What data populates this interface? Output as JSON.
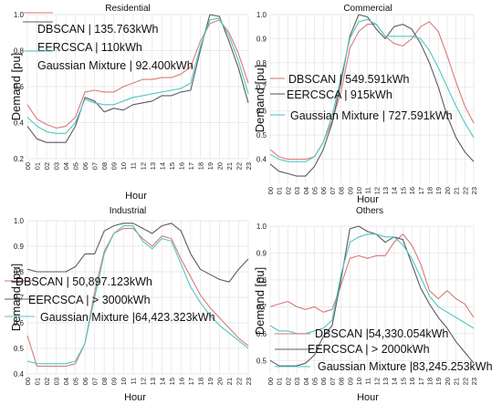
{
  "chart_data": [
    {
      "type": "line",
      "title": "Residential",
      "xlabel": "Hour",
      "ylabel": "Demand  [pu]",
      "ylim": [
        0.2,
        1.0
      ],
      "yticks": [
        "0.2",
        "0.4",
        "0.6",
        "0.8",
        "1.0"
      ],
      "x": [
        "00",
        "01",
        "02",
        "03",
        "04",
        "05",
        "06",
        "07",
        "08",
        "09",
        "10",
        "11",
        "12",
        "13",
        "14",
        "15",
        "16",
        "17",
        "18",
        "19",
        "20",
        "21",
        "22",
        "23"
      ],
      "legend_position": "top-left",
      "series": [
        {
          "name": "DBSCAN | 135.763kWh",
          "color": "#d97a7a",
          "values": [
            0.5,
            0.42,
            0.39,
            0.37,
            0.38,
            0.43,
            0.57,
            0.58,
            0.57,
            0.57,
            0.6,
            0.62,
            0.64,
            0.64,
            0.65,
            0.65,
            0.67,
            0.71,
            0.85,
            0.95,
            0.97,
            0.9,
            0.78,
            0.62
          ]
        },
        {
          "name": "EERCSCA | 110kWh",
          "color": "#5c5c5c",
          "values": [
            0.38,
            0.31,
            0.29,
            0.29,
            0.29,
            0.38,
            0.54,
            0.52,
            0.46,
            0.48,
            0.47,
            0.5,
            0.51,
            0.52,
            0.55,
            0.55,
            0.57,
            0.58,
            0.8,
            1.0,
            0.99,
            0.85,
            0.7,
            0.51
          ]
        },
        {
          "name": "Gaussian Mixture | 92.400kWh",
          "color": "#4fc7c2",
          "values": [
            0.43,
            0.38,
            0.35,
            0.34,
            0.34,
            0.4,
            0.53,
            0.51,
            0.5,
            0.5,
            0.52,
            0.54,
            0.55,
            0.56,
            0.57,
            0.58,
            0.59,
            0.62,
            0.82,
            0.97,
            0.98,
            0.88,
            0.74,
            0.56
          ]
        }
      ]
    },
    {
      "type": "line",
      "title": "Commercial",
      "xlabel": "Hour",
      "ylabel": "Demand  [pu]",
      "ylim": [
        0.3,
        1.0
      ],
      "yticks": [
        "0.4",
        "0.5",
        "0.6",
        "0.7",
        "0.8",
        "0.9",
        "1.0"
      ],
      "x": [
        "00",
        "01",
        "02",
        "03",
        "04",
        "05",
        "06",
        "07",
        "08",
        "09",
        "10",
        "11",
        "12",
        "13",
        "14",
        "15",
        "16",
        "17",
        "18",
        "19",
        "20",
        "21",
        "22",
        "23"
      ],
      "legend_position": "center-left",
      "series": [
        {
          "name": "DBSCAN | 549.591kWh",
          "color": "#d97a7a",
          "values": [
            0.44,
            0.41,
            0.4,
            0.4,
            0.4,
            0.41,
            0.47,
            0.56,
            0.68,
            0.86,
            0.93,
            0.96,
            0.96,
            0.91,
            0.88,
            0.87,
            0.9,
            0.95,
            0.97,
            0.93,
            0.83,
            0.72,
            0.62,
            0.55
          ]
        },
        {
          "name": "EERCSCA | 915kWh",
          "color": "#5c5c5c",
          "values": [
            0.38,
            0.35,
            0.34,
            0.33,
            0.33,
            0.37,
            0.44,
            0.55,
            0.72,
            0.91,
            1.0,
            0.99,
            0.94,
            0.9,
            0.95,
            0.96,
            0.94,
            0.88,
            0.8,
            0.7,
            0.58,
            0.49,
            0.43,
            0.39
          ]
        },
        {
          "name": "Gaussian Mixture | 727.591kWh",
          "color": "#4fc7c2",
          "values": [
            0.42,
            0.4,
            0.39,
            0.39,
            0.39,
            0.41,
            0.47,
            0.58,
            0.74,
            0.9,
            0.97,
            0.98,
            0.96,
            0.91,
            0.91,
            0.91,
            0.91,
            0.9,
            0.85,
            0.78,
            0.7,
            0.62,
            0.55,
            0.49
          ]
        }
      ]
    },
    {
      "type": "line",
      "title": "Industrial",
      "xlabel": "Hour",
      "ylabel": "Demand  [pu]",
      "ylim": [
        0.4,
        1.0
      ],
      "yticks": [
        "0.4",
        "0.5",
        "0.6",
        "0.7",
        "0.8",
        "0.9",
        "1.0"
      ],
      "x": [
        "00",
        "01",
        "02",
        "03",
        "04",
        "05",
        "06",
        "07",
        "08",
        "09",
        "10",
        "11",
        "12",
        "13",
        "14",
        "15",
        "16",
        "17",
        "18",
        "19",
        "20",
        "21",
        "22",
        "23"
      ],
      "legend_position": "center-left",
      "series": [
        {
          "name": "DBSCAN | 50,897.123kWh",
          "color": "#d97a7a",
          "values": [
            0.55,
            0.43,
            0.43,
            0.43,
            0.43,
            0.44,
            0.52,
            0.72,
            0.88,
            0.95,
            0.97,
            0.97,
            0.93,
            0.9,
            0.94,
            0.93,
            0.85,
            0.78,
            0.71,
            0.66,
            0.62,
            0.58,
            0.54,
            0.51
          ]
        },
        {
          "name": "EERCSCA | > 3000kWh",
          "color": "#5c5c5c",
          "values": [
            0.81,
            0.8,
            0.8,
            0.8,
            0.8,
            0.82,
            0.87,
            0.87,
            0.96,
            0.98,
            0.99,
            0.99,
            0.97,
            0.95,
            0.98,
            0.99,
            0.96,
            0.87,
            0.81,
            0.79,
            0.77,
            0.76,
            0.81,
            0.85
          ]
        },
        {
          "name": "Gaussian Mixture |64,423.323kWh",
          "color": "#4fc7c2",
          "values": [
            0.45,
            0.44,
            0.44,
            0.44,
            0.44,
            0.45,
            0.52,
            0.7,
            0.87,
            0.95,
            0.98,
            0.98,
            0.92,
            0.89,
            0.93,
            0.92,
            0.83,
            0.74,
            0.68,
            0.63,
            0.59,
            0.56,
            0.53,
            0.5
          ]
        }
      ]
    },
    {
      "type": "line",
      "title": "Others",
      "xlabel": "Hour",
      "ylabel": "Demand  [pu]",
      "ylim": [
        0.45,
        1.0
      ],
      "yticks": [
        "0.5",
        "0.6",
        "0.7",
        "0.8",
        "0.9",
        "1.0"
      ],
      "x": [
        "00",
        "01",
        "02",
        "03",
        "04",
        "05",
        "06",
        "07",
        "08",
        "09",
        "10",
        "11",
        "12",
        "13",
        "14",
        "15",
        "16",
        "17",
        "18",
        "19",
        "20",
        "21",
        "22",
        "23"
      ],
      "legend_position": "bottom-left",
      "series": [
        {
          "name": "DBSCAN |54,330.054kWh",
          "color": "#d97a7a",
          "values": [
            0.7,
            0.71,
            0.72,
            0.7,
            0.69,
            0.7,
            0.68,
            0.69,
            0.78,
            0.88,
            0.89,
            0.88,
            0.89,
            0.89,
            0.94,
            0.97,
            0.93,
            0.86,
            0.76,
            0.73,
            0.76,
            0.73,
            0.71,
            0.66
          ]
        },
        {
          "name": "EERCSCA | > 2000kWh",
          "color": "#5c5c5c",
          "values": [
            0.5,
            0.48,
            0.48,
            0.48,
            0.49,
            0.52,
            0.59,
            0.63,
            0.8,
            0.99,
            1.0,
            0.98,
            0.97,
            0.94,
            0.96,
            0.95,
            0.86,
            0.77,
            0.71,
            0.66,
            0.62,
            0.57,
            0.53,
            0.49
          ]
        },
        {
          "name": "Gaussian Mixture |83,245.253kWh",
          "color": "#4fc7c2",
          "values": [
            0.63,
            0.61,
            0.61,
            0.6,
            0.6,
            0.61,
            0.62,
            0.65,
            0.82,
            0.94,
            0.96,
            0.97,
            0.97,
            0.96,
            0.96,
            0.93,
            0.88,
            0.81,
            0.74,
            0.7,
            0.68,
            0.66,
            0.64,
            0.62
          ]
        }
      ]
    }
  ]
}
